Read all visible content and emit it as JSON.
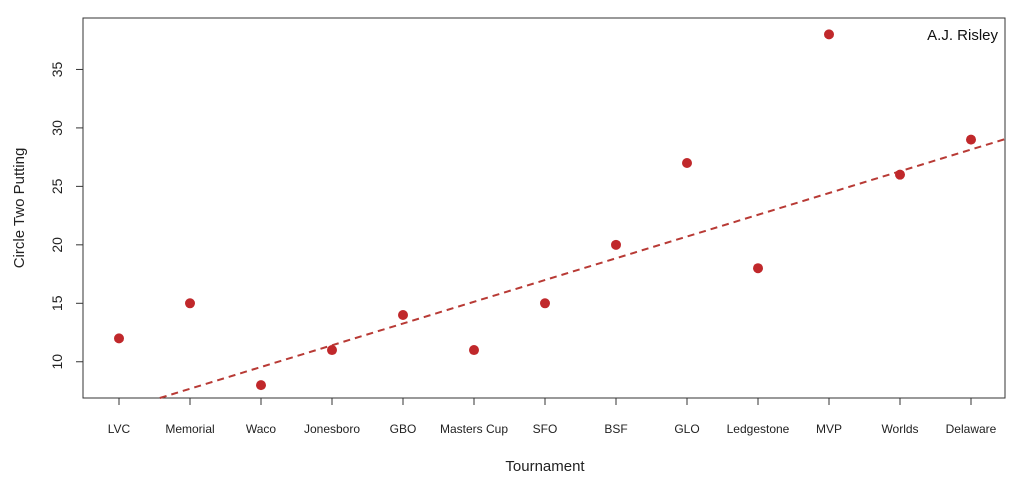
{
  "chart_data": {
    "type": "scatter",
    "title": "",
    "xlabel": "Tournament",
    "ylabel": "Circle Two Putting",
    "annotation": "A.J. Risley",
    "categories": [
      "LVC",
      "Memorial",
      "Waco",
      "Jonesboro",
      "GBO",
      "Masters Cup",
      "SFO",
      "BSF",
      "GLO",
      "Ledgestone",
      "MVP",
      "Worlds",
      "Delaware"
    ],
    "series": [
      {
        "values": [
          12,
          15,
          8,
          11,
          14,
          11,
          15,
          20,
          27,
          18,
          38,
          26,
          29
        ],
        "color": "#c0282b"
      }
    ],
    "trendline": {
      "style": "dashed",
      "color": "#b83a35",
      "intercept": 5.83,
      "slope": 1.86
    },
    "yticks": [
      10,
      15,
      20,
      25,
      30,
      35
    ],
    "ylim": [
      6.9,
      39.4
    ],
    "grid": false,
    "legend": "none"
  }
}
